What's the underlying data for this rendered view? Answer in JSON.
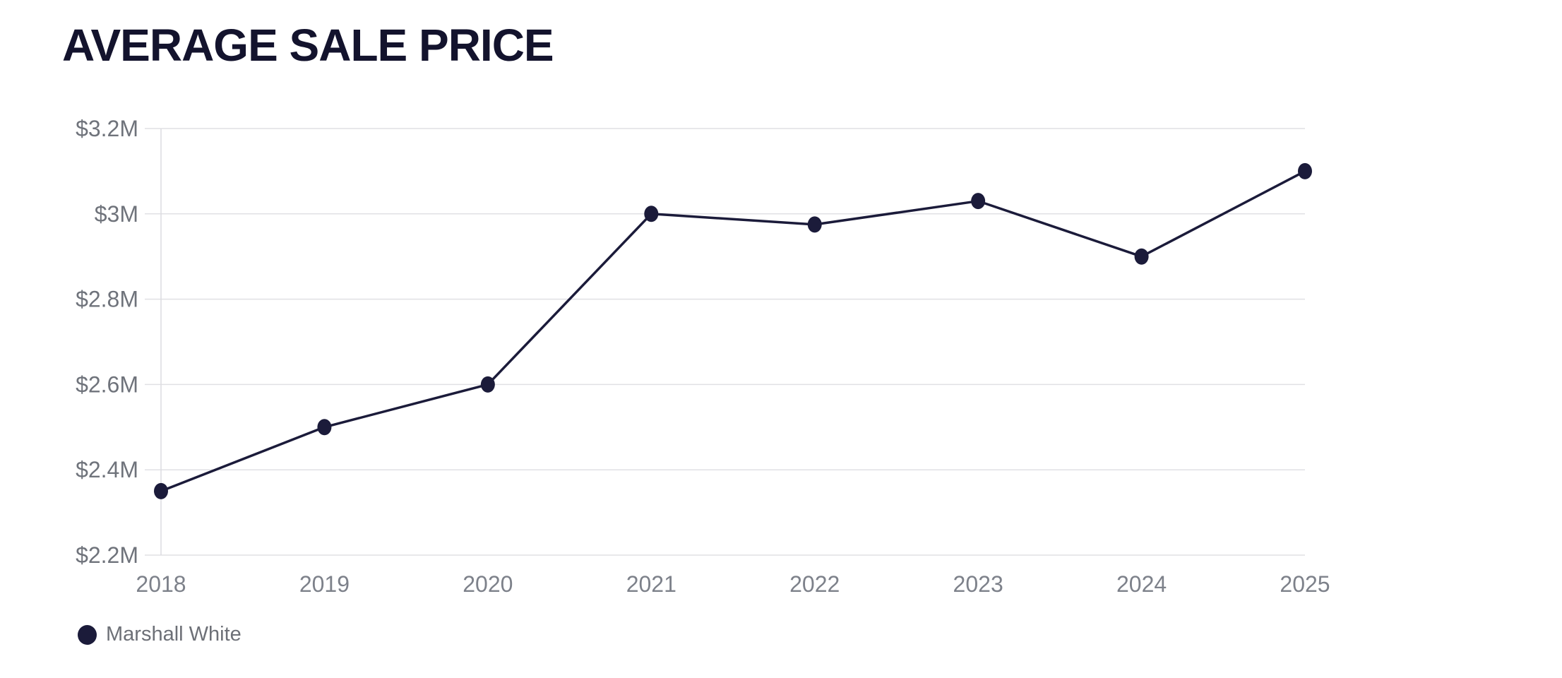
{
  "title": "AVERAGE SALE PRICE",
  "legend": {
    "items": [
      {
        "label": "Marshall White",
        "color": "#1b1b3a"
      }
    ]
  },
  "chart_data": {
    "type": "line",
    "title": "AVERAGE SALE PRICE",
    "categories": [
      "2018",
      "2019",
      "2020",
      "2021",
      "2022",
      "2023",
      "2024",
      "2025"
    ],
    "series": [
      {
        "name": "Marshall White",
        "values": [
          2.35,
          2.5,
          2.6,
          3.0,
          2.975,
          3.03,
          2.9,
          3.1
        ],
        "color": "#1b1b3a"
      }
    ],
    "value_unit": "$M",
    "y_ticks": [
      2.2,
      2.4,
      2.6,
      2.8,
      3.0,
      3.2
    ],
    "y_tick_labels": [
      "$2.2M",
      "$2.4M",
      "$2.6M",
      "$2.8M",
      "$3M",
      "$3.2M"
    ],
    "ylim": [
      2.2,
      3.2
    ],
    "xlabel": "",
    "ylabel": "",
    "grid": "horizontal",
    "legend_position": "bottom-left",
    "colors": {
      "line": "#1b1b3a",
      "point": "#1b1b3a",
      "grid": "#e0e0e4",
      "axis_line": "#dcdce0",
      "y_tick_text": "#6f737b",
      "x_tick_text": "#7d818a",
      "title": "#13132d"
    }
  }
}
